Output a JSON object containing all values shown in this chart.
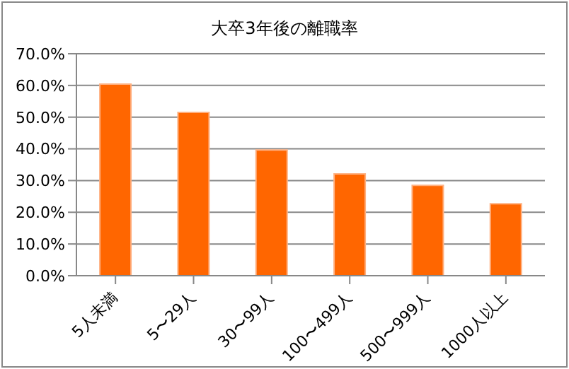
{
  "chart_data": {
    "type": "bar",
    "title": "大卒3年後の離職率",
    "categories": [
      "5人未満",
      "5〜29人",
      "30〜99人",
      "100〜499人",
      "500〜999人",
      "1000人以上"
    ],
    "values": [
      60.4,
      51.5,
      39.6,
      32.1,
      28.5,
      22.7
    ],
    "color": "#ff6600",
    "ylim": [
      0,
      70
    ],
    "yticks": [
      {
        "value": 0,
        "label": "0.0%"
      },
      {
        "value": 10,
        "label": "10.0%"
      },
      {
        "value": 20,
        "label": "20.0%"
      },
      {
        "value": 30,
        "label": "30.0%"
      },
      {
        "value": 40,
        "label": "40.0%"
      },
      {
        "value": 50,
        "label": "50.0%"
      },
      {
        "value": 60,
        "label": "60.0%"
      },
      {
        "value": 70,
        "label": "70.0%"
      }
    ],
    "grid": "y",
    "legend": false
  }
}
